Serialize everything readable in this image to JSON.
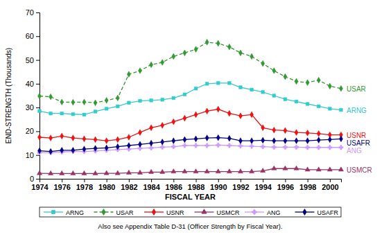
{
  "chart_data": {
    "type": "line",
    "x_label": "FISCAL YEAR",
    "y_label": "END-STRENGTH (Thousands)",
    "annotation": "Also see Appendix Table D-31 (Officer Strength by Fiscal Year).",
    "x": [
      1974,
      1975,
      1976,
      1977,
      1978,
      1979,
      1980,
      1981,
      1982,
      1983,
      1984,
      1985,
      1986,
      1987,
      1988,
      1989,
      1990,
      1991,
      1992,
      1993,
      1994,
      1995,
      1996,
      1997,
      1998,
      1999,
      2000,
      2001
    ],
    "xlim": [
      1974,
      2001
    ],
    "xticks": [
      1974,
      1976,
      1978,
      1980,
      1982,
      1984,
      1986,
      1988,
      1990,
      1992,
      1994,
      1996,
      1998,
      2000
    ],
    "ylim": [
      0,
      70
    ],
    "yticks": [
      0,
      10,
      20,
      30,
      40,
      50,
      60,
      70
    ],
    "grid": false,
    "legend": "bottom",
    "series": [
      {
        "name": "ARNG",
        "color": "#33cccc",
        "marker": "square",
        "line_style": "solid",
        "values": [
          28.5,
          27.5,
          27.5,
          27.2,
          27.0,
          28.3,
          29.5,
          30.5,
          32.0,
          32.8,
          33.0,
          33.3,
          34.0,
          35.5,
          38.0,
          40.0,
          40.3,
          40.3,
          38.5,
          37.5,
          36.5,
          35.0,
          33.5,
          32.5,
          31.5,
          30.5,
          29.5,
          29.0
        ]
      },
      {
        "name": "USAR",
        "color": "#339933",
        "marker": "diamond",
        "line_style": "dashed",
        "values": [
          34.8,
          34.5,
          32.3,
          32.2,
          32.3,
          32.0,
          33.0,
          34.0,
          44.0,
          45.5,
          48.0,
          49.0,
          51.5,
          53.0,
          54.5,
          57.5,
          57.0,
          55.5,
          53.0,
          51.5,
          48.5,
          45.5,
          43.0,
          41.0,
          40.5,
          41.5,
          39.0,
          38.0
        ]
      },
      {
        "name": "USNR",
        "color": "#ee1111",
        "marker": "diamond",
        "line_style": "solid",
        "values": [
          17.5,
          17.2,
          18.0,
          17.2,
          16.8,
          16.5,
          16.0,
          16.5,
          17.5,
          19.5,
          21.5,
          22.5,
          24.0,
          25.5,
          27.0,
          28.5,
          29.3,
          27.5,
          26.5,
          27.0,
          21.5,
          20.5,
          20.3,
          19.5,
          19.3,
          19.0,
          18.5,
          18.5
        ]
      },
      {
        "name": "USMCR",
        "color": "#993366",
        "marker": "triangle",
        "line_style": "solid",
        "values": [
          2.3,
          2.2,
          2.2,
          2.2,
          2.2,
          2.2,
          2.3,
          2.3,
          2.5,
          2.5,
          2.8,
          2.8,
          3.0,
          3.0,
          3.0,
          3.0,
          3.0,
          3.0,
          3.0,
          3.0,
          3.3,
          4.3,
          4.3,
          4.3,
          3.8,
          3.8,
          3.8,
          3.8
        ]
      },
      {
        "name": "ANG",
        "color": "#cc99ff",
        "marker": "cross",
        "line_style": "solid",
        "values": [
          11.0,
          11.0,
          11.3,
          11.5,
          11.5,
          11.7,
          12.0,
          12.3,
          12.5,
          12.8,
          13.0,
          13.3,
          13.5,
          14.0,
          14.0,
          14.0,
          14.2,
          14.0,
          13.8,
          13.7,
          13.5,
          13.3,
          13.3,
          13.3,
          13.2,
          13.2,
          13.2,
          13.2
        ]
      },
      {
        "name": "USAFR",
        "color": "#000080",
        "marker": "diamond",
        "line_style": "solid",
        "values": [
          11.8,
          11.5,
          12.0,
          12.0,
          12.5,
          12.8,
          13.0,
          13.5,
          14.0,
          14.5,
          15.0,
          15.5,
          16.0,
          16.5,
          16.8,
          17.2,
          17.3,
          17.0,
          16.0,
          16.0,
          16.2,
          16.0,
          16.0,
          16.0,
          16.0,
          16.3,
          16.5,
          16.8
        ]
      }
    ]
  }
}
